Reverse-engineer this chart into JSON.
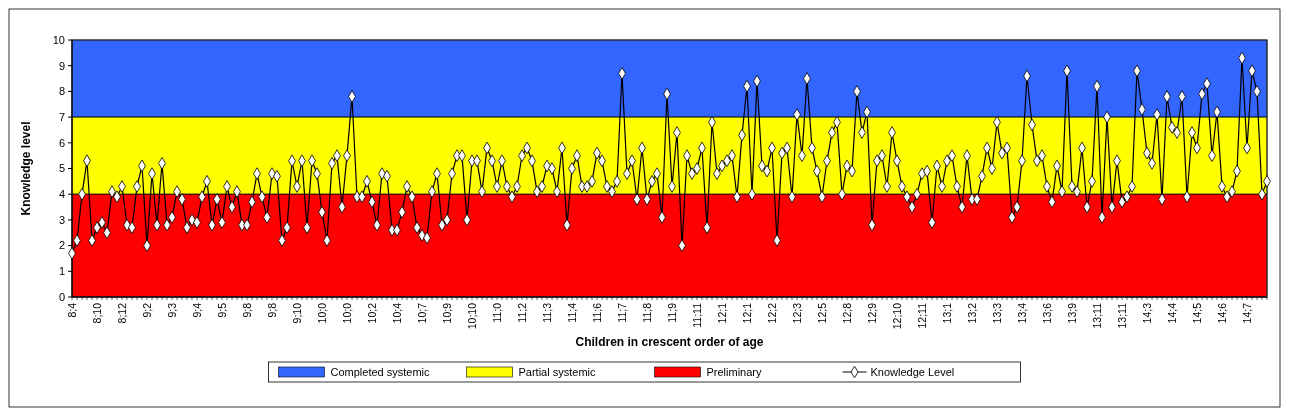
{
  "chart_data": {
    "type": "line",
    "xlabel": "Children in crescent order of age",
    "ylabel": "Knowledge level",
    "categories": [
      "8;4",
      null,
      null,
      null,
      null,
      "8;10",
      null,
      null,
      null,
      null,
      "8;12",
      null,
      null,
      null,
      null,
      "9;2",
      null,
      null,
      null,
      null,
      "9;3",
      null,
      null,
      null,
      null,
      "9;4",
      null,
      null,
      null,
      null,
      "9;5",
      null,
      null,
      null,
      null,
      "9;8",
      null,
      null,
      null,
      null,
      "9;8",
      null,
      null,
      null,
      null,
      "9;10",
      null,
      null,
      null,
      null,
      "10;0",
      null,
      null,
      null,
      null,
      "10;0",
      null,
      null,
      null,
      null,
      "10;2",
      null,
      null,
      null,
      null,
      "10;4",
      null,
      null,
      null,
      null,
      "10;7",
      null,
      null,
      null,
      null,
      "10;9",
      null,
      null,
      null,
      null,
      "10;10",
      null,
      null,
      null,
      null,
      "11;0",
      null,
      null,
      null,
      null,
      "11;2",
      null,
      null,
      null,
      null,
      "11;3",
      null,
      null,
      null,
      null,
      "11;4",
      null,
      null,
      null,
      null,
      "11;6",
      null,
      null,
      null,
      null,
      "11;7",
      null,
      null,
      null,
      null,
      "11;8",
      null,
      null,
      null,
      null,
      "11;9",
      null,
      null,
      null,
      null,
      "11;11",
      null,
      null,
      null,
      null,
      "12;1",
      null,
      null,
      null,
      null,
      "12;1",
      null,
      null,
      null,
      null,
      "12;2",
      null,
      null,
      null,
      null,
      "12;3",
      null,
      null,
      null,
      null,
      "12;5",
      null,
      null,
      null,
      null,
      "12;8",
      null,
      null,
      null,
      null,
      "12;9",
      null,
      null,
      null,
      null,
      "12;10",
      null,
      null,
      null,
      null,
      "12;11",
      null,
      null,
      null,
      null,
      "13;1",
      null,
      null,
      null,
      null,
      "13;2",
      null,
      null,
      null,
      null,
      "13;3",
      null,
      null,
      null,
      null,
      "13;4",
      null,
      null,
      null,
      null,
      "13;6",
      null,
      null,
      null,
      null,
      "13;9",
      null,
      null,
      null,
      null,
      "13;11",
      null,
      null,
      null,
      null,
      "13;11",
      null,
      null,
      null,
      null,
      "14;3",
      null,
      null,
      null,
      null,
      "14;4",
      null,
      null,
      null,
      null,
      "14;5",
      null,
      null,
      null,
      null,
      "14;6",
      null,
      null,
      null,
      null,
      "14;7",
      null,
      null,
      null,
      null
    ],
    "series": [
      {
        "name": "Knowledge Level",
        "color": "#000000",
        "values": [
          1.7,
          2.2,
          4.0,
          5.3,
          2.2,
          2.7,
          2.9,
          2.5,
          4.1,
          3.9,
          4.3,
          2.8,
          2.7,
          4.3,
          5.1,
          2.0,
          4.8,
          2.8,
          5.2,
          2.8,
          3.1,
          4.1,
          3.8,
          2.7,
          3.0,
          2.9,
          3.9,
          4.5,
          2.8,
          3.8,
          2.9,
          4.3,
          3.5,
          4.1,
          2.8,
          2.8,
          3.7,
          4.8,
          3.9,
          3.1,
          4.8,
          4.7,
          2.2,
          2.7,
          5.3,
          4.3,
          5.3,
          2.7,
          5.3,
          4.8,
          3.3,
          2.2,
          5.2,
          5.5,
          3.5,
          5.5,
          7.8,
          3.9,
          3.9,
          4.5,
          3.7,
          2.8,
          4.8,
          4.7,
          2.6,
          2.6,
          3.3,
          4.3,
          3.9,
          2.7,
          2.4,
          2.3,
          4.1,
          4.8,
          2.8,
          3.0,
          4.8,
          5.5,
          5.5,
          3.0,
          5.3,
          5.3,
          4.1,
          5.8,
          5.3,
          4.3,
          5.3,
          4.3,
          3.9,
          4.3,
          5.5,
          5.8,
          5.3,
          4.1,
          4.3,
          5.1,
          5.0,
          4.1,
          5.8,
          2.8,
          5.0,
          5.5,
          4.3,
          4.3,
          4.5,
          5.6,
          5.3,
          4.3,
          4.1,
          4.5,
          8.7,
          4.8,
          5.3,
          3.8,
          5.8,
          3.8,
          4.5,
          4.8,
          3.1,
          7.9,
          4.3,
          6.4,
          2.0,
          5.5,
          4.8,
          5.0,
          5.8,
          2.7,
          6.8,
          4.8,
          5.1,
          5.3,
          5.5,
          3.9,
          6.3,
          8.2,
          4.0,
          8.4,
          5.1,
          4.9,
          5.8,
          2.2,
          5.6,
          5.8,
          3.9,
          7.1,
          5.5,
          8.5,
          5.8,
          4.9,
          3.9,
          5.3,
          6.4,
          6.8,
          4.0,
          5.1,
          4.9,
          8.0,
          6.4,
          7.2,
          2.8,
          5.3,
          5.5,
          4.3,
          6.4,
          5.3,
          4.3,
          3.9,
          3.5,
          4.0,
          4.8,
          4.9,
          2.9,
          5.1,
          4.3,
          5.3,
          5.5,
          4.3,
          3.5,
          5.5,
          3.8,
          3.8,
          4.7,
          5.8,
          5.0,
          6.8,
          5.6,
          5.8,
          3.1,
          3.5,
          5.3,
          8.6,
          6.7,
          5.3,
          5.5,
          4.3,
          3.7,
          5.1,
          4.1,
          8.8,
          4.3,
          4.1,
          5.8,
          3.5,
          4.5,
          8.2,
          3.1,
          7.0,
          3.5,
          5.3,
          3.7,
          3.9,
          4.3,
          8.8,
          7.3,
          5.6,
          5.2,
          7.1,
          3.8,
          7.8,
          6.6,
          6.4,
          7.8,
          3.9,
          6.4,
          5.8,
          7.9,
          8.3,
          5.5,
          7.2,
          4.3,
          3.9,
          4.1,
          4.9,
          9.3,
          5.8,
          8.8,
          8.0,
          4.0,
          4.5
        ]
      }
    ],
    "bands": [
      {
        "axis": "y",
        "from": 7,
        "to": 10,
        "label": "Completed systemic",
        "color": "#3366ff"
      },
      {
        "axis": "y",
        "from": 4,
        "to": 7,
        "label": "Partial systemic",
        "color": "#ffff00"
      },
      {
        "axis": "y",
        "from": 0,
        "to": 4,
        "label": "Preliminary",
        "color": "#ff0000"
      }
    ],
    "ylim": [
      0,
      10
    ],
    "yticks": [
      0,
      1,
      2,
      3,
      4,
      5,
      6,
      7,
      8,
      9,
      10
    ],
    "marker": "diamond",
    "line_style": "solid",
    "legend": "bottom"
  }
}
